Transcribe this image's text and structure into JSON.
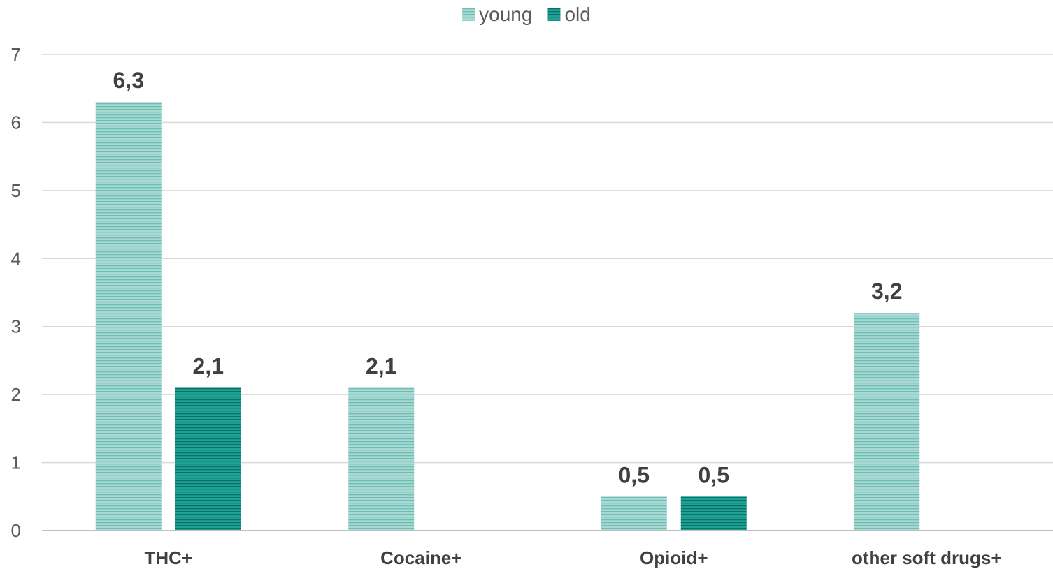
{
  "chart_data": {
    "type": "bar",
    "categories": [
      "THC+",
      "Cocaine+",
      "Opioid+",
      "other soft drugs+"
    ],
    "series": [
      {
        "name": "young",
        "values": [
          6.3,
          2.1,
          0.5,
          3.2
        ],
        "labels": [
          "6,3",
          "2,1",
          "0,5",
          "3,2"
        ],
        "color": "#a9d9d2",
        "stripe": "#6cbfb4"
      },
      {
        "name": "old",
        "values": [
          2.1,
          null,
          0.5,
          null
        ],
        "labels": [
          "2,1",
          null,
          "0,5",
          null
        ],
        "color": "#1fa296",
        "stripe": "#0a6f66"
      }
    ],
    "ylim": [
      0,
      7
    ],
    "yticks": [
      "0",
      "1",
      "2",
      "3",
      "4",
      "5",
      "6",
      "7"
    ],
    "grid": true,
    "legend_position": "top-center",
    "colors": {
      "gridline": "#d9d9d9",
      "axis": "#bfbfbf"
    }
  }
}
